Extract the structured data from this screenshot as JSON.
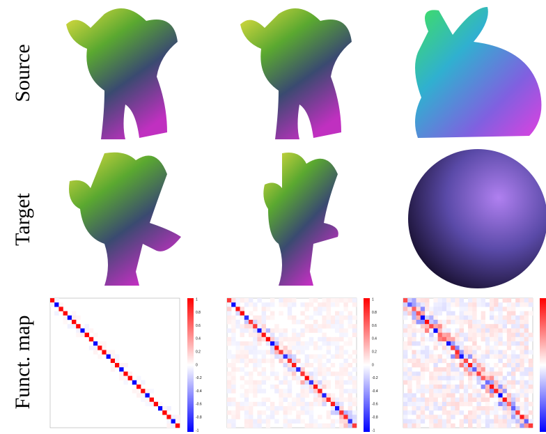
{
  "row_labels": [
    "Source",
    "Target",
    "Funct. map"
  ],
  "colorbar_ticks": [
    "1",
    "0.8",
    "0.6",
    "0.4",
    "0.2",
    "0",
    "-0.2",
    "-0.4",
    "-0.6",
    "-0.8",
    "-1"
  ]
}
